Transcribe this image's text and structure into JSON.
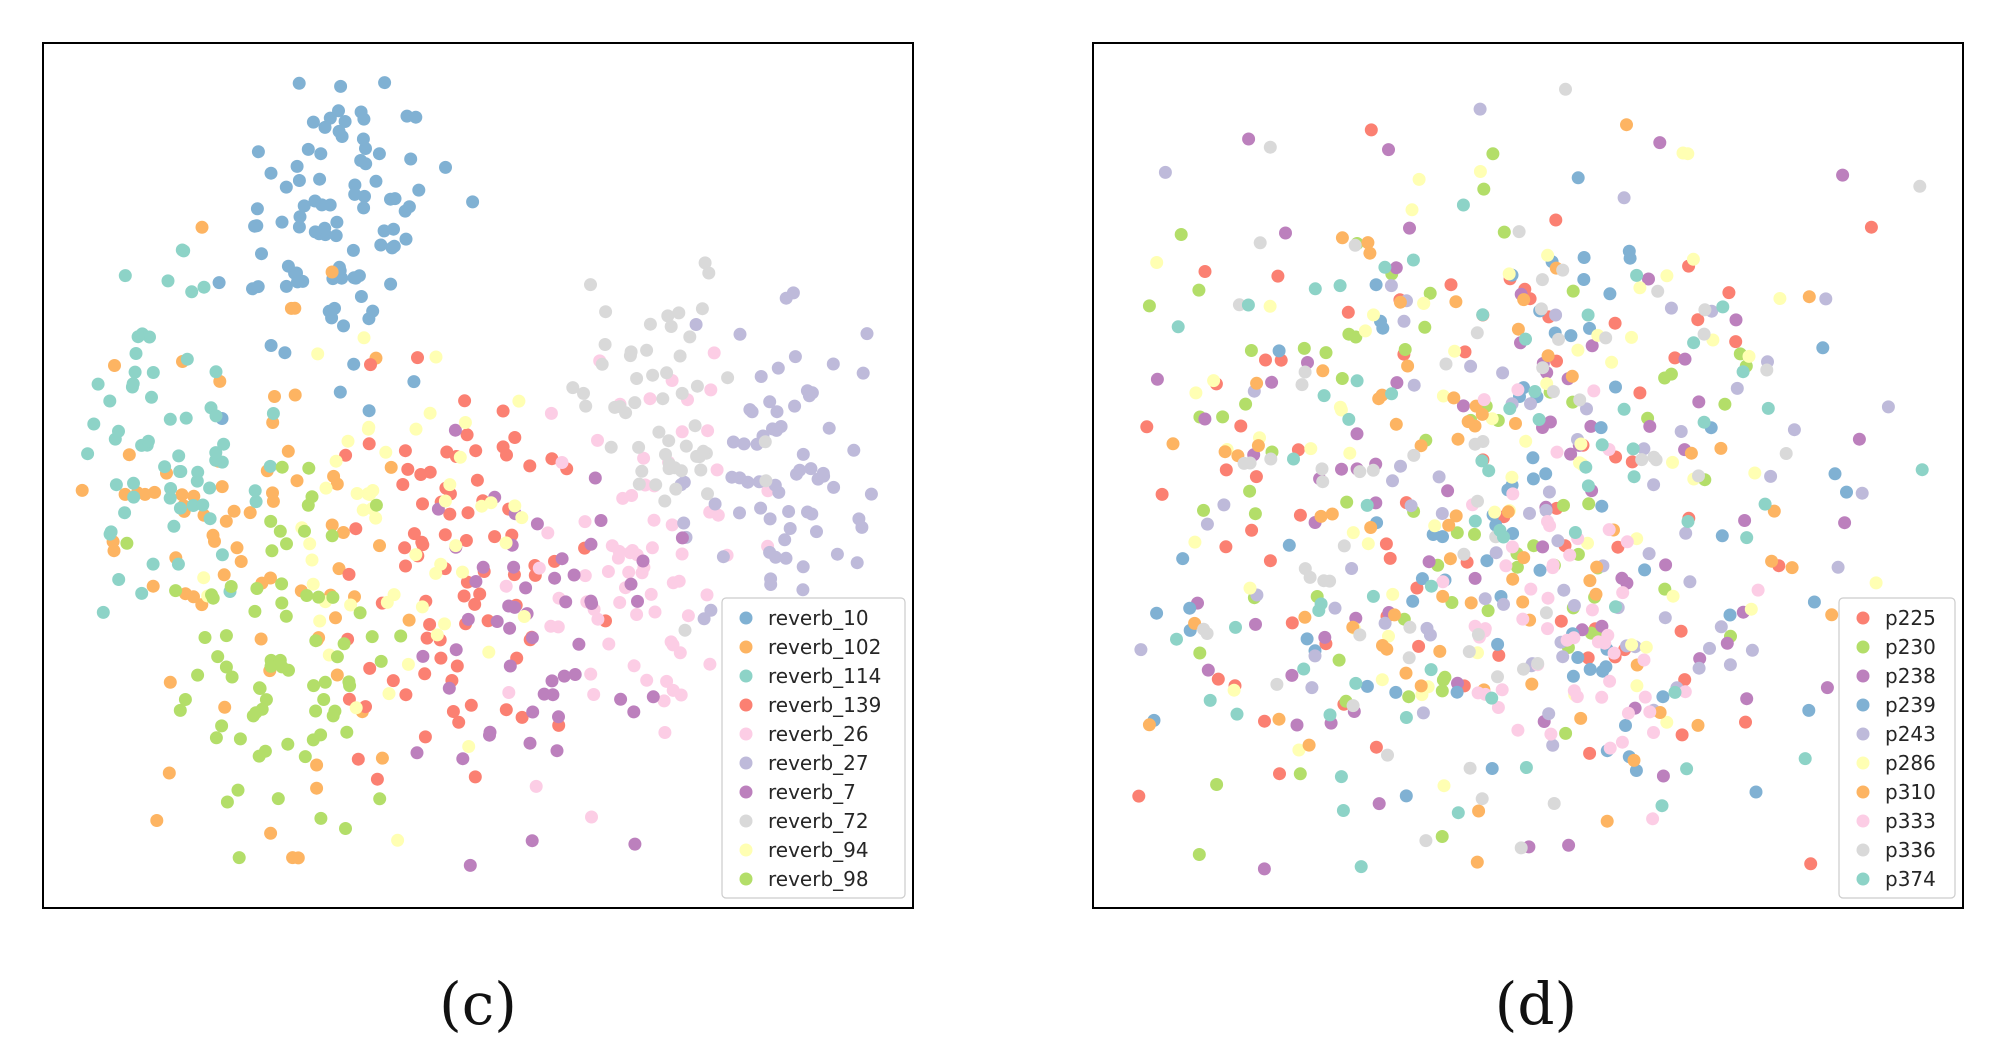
{
  "figure": {
    "panels": [
      {
        "caption": "(c)",
        "legend_title": "",
        "legend_location": "lower right"
      },
      {
        "caption": "(d)",
        "legend_title": "",
        "legend_location": "lower right"
      }
    ]
  },
  "chart_data": [
    {
      "type": "scatter",
      "title": "",
      "xlabel": "",
      "ylabel": "",
      "axes_ticks": "none",
      "grid": false,
      "legend_placement": "lower-right",
      "series": [
        {
          "name": "reverb_10",
          "color": "#80b1d3",
          "cluster_center": [
            0.33,
            0.82
          ],
          "approx_points": 95
        },
        {
          "name": "reverb_102",
          "color": "#fdb462",
          "cluster_center": [
            0.22,
            0.42
          ],
          "approx_points": 75
        },
        {
          "name": "reverb_114",
          "color": "#8dd3c7",
          "cluster_center": [
            0.12,
            0.52
          ],
          "approx_points": 65
        },
        {
          "name": "reverb_139",
          "color": "#fb8072",
          "cluster_center": [
            0.48,
            0.38
          ],
          "approx_points": 85
        },
        {
          "name": "reverb_26",
          "color": "#fccde5",
          "cluster_center": [
            0.7,
            0.4
          ],
          "approx_points": 75
        },
        {
          "name": "reverb_27",
          "color": "#bebada",
          "cluster_center": [
            0.88,
            0.5
          ],
          "approx_points": 70
        },
        {
          "name": "reverb_7",
          "color": "#bc80bd",
          "cluster_center": [
            0.56,
            0.32
          ],
          "approx_points": 55
        },
        {
          "name": "reverb_72",
          "color": "#d9d9d9",
          "cluster_center": [
            0.72,
            0.58
          ],
          "approx_points": 55
        },
        {
          "name": "reverb_94",
          "color": "#ffffb3",
          "cluster_center": [
            0.4,
            0.42
          ],
          "approx_points": 55
        },
        {
          "name": "reverb_98",
          "color": "#b3de69",
          "cluster_center": [
            0.28,
            0.3
          ],
          "approx_points": 75
        }
      ]
    },
    {
      "type": "scatter",
      "title": "",
      "xlabel": "",
      "ylabel": "",
      "axes_ticks": "none",
      "grid": false,
      "legend_placement": "lower-right",
      "series": [
        {
          "name": "p225",
          "color": "#fb8072",
          "cluster_center": [
            0.45,
            0.45
          ],
          "approx_points": 75
        },
        {
          "name": "p230",
          "color": "#b3de69",
          "cluster_center": [
            0.4,
            0.45
          ],
          "approx_points": 75
        },
        {
          "name": "p238",
          "color": "#bc80bd",
          "cluster_center": [
            0.45,
            0.45
          ],
          "approx_points": 75
        },
        {
          "name": "p239",
          "color": "#80b1d3",
          "cluster_center": [
            0.48,
            0.45
          ],
          "approx_points": 75
        },
        {
          "name": "p243",
          "color": "#bebada",
          "cluster_center": [
            0.5,
            0.45
          ],
          "approx_points": 75
        },
        {
          "name": "p286",
          "color": "#ffffb3",
          "cluster_center": [
            0.45,
            0.55
          ],
          "approx_points": 70
        },
        {
          "name": "p310",
          "color": "#fdb462",
          "cluster_center": [
            0.45,
            0.45
          ],
          "approx_points": 75
        },
        {
          "name": "p333",
          "color": "#fccde5",
          "cluster_center": [
            0.55,
            0.35
          ],
          "approx_points": 55
        },
        {
          "name": "p336",
          "color": "#d9d9d9",
          "cluster_center": [
            0.45,
            0.5
          ],
          "approx_points": 65
        },
        {
          "name": "p374",
          "color": "#8dd3c7",
          "cluster_center": [
            0.45,
            0.45
          ],
          "approx_points": 65
        }
      ]
    }
  ]
}
